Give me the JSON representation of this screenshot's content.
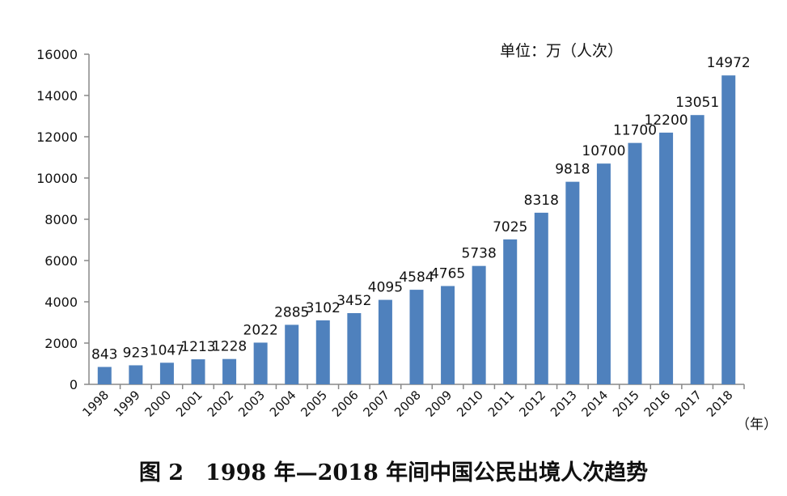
{
  "chart_data": {
    "type": "bar",
    "title": "图 2　1998 年—2018 年间中国公民出境人次趋势",
    "unit_label": "单位：万（人次）",
    "xlabel": "（年）",
    "ylabel": "",
    "ylim": [
      0,
      16000
    ],
    "yticks": [
      0,
      2000,
      4000,
      6000,
      8000,
      10000,
      12000,
      14000,
      16000
    ],
    "grid": false,
    "bar_color": "#4f81bd",
    "categories": [
      "1998",
      "1999",
      "2000",
      "2001",
      "2002",
      "2003",
      "2004",
      "2005",
      "2006",
      "2007",
      "2008",
      "2009",
      "2010",
      "2011",
      "2012",
      "2013",
      "2014",
      "2015",
      "2016",
      "2017",
      "2018"
    ],
    "values": [
      843,
      923,
      1047,
      1213,
      1228,
      2022,
      2885,
      3102,
      3452,
      4095,
      4584,
      4765,
      5738,
      7025,
      8318,
      9818,
      10700,
      11700,
      12200,
      13051,
      14972
    ]
  }
}
